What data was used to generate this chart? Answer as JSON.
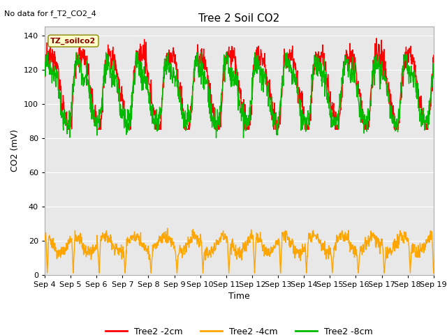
{
  "title": "Tree 2 Soil CO2",
  "subtitle": "No data for f_T2_CO2_4",
  "ylabel": "CO2 (mV)",
  "xlabel": "Time",
  "annotation": "TZ_soilco2",
  "x_tick_labels": [
    "Sep 4",
    "Sep 5",
    "Sep 6",
    "Sep 7",
    "Sep 8",
    "Sep 9",
    "Sep 10",
    "Sep 11",
    "Sep 12",
    "Sep 13",
    "Sep 14",
    "Sep 15",
    "Sep 16",
    "Sep 17",
    "Sep 18",
    "Sep 19"
  ],
  "ylim": [
    0,
    145
  ],
  "yticks": [
    0,
    20,
    40,
    60,
    80,
    100,
    120,
    140
  ],
  "background_color": "#ffffff",
  "plot_bg_color": "#e8e8e8",
  "grid_color": "#ffffff",
  "legend": [
    "Tree2 -2cm",
    "Tree2 -4cm",
    "Tree2 -8cm"
  ],
  "legend_colors": [
    "#ff0000",
    "#ffa500",
    "#00bb00"
  ],
  "line_width": 1.0,
  "n_points": 1500
}
